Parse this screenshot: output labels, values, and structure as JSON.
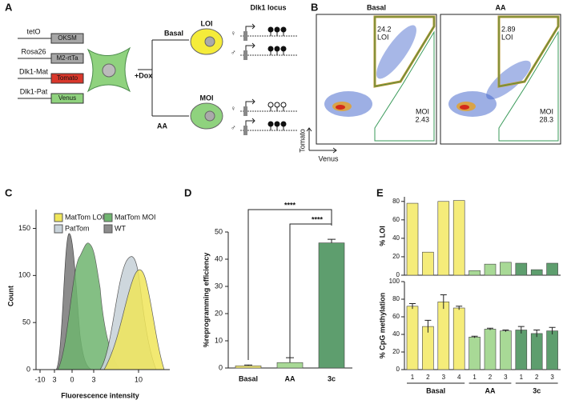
{
  "panel_a": {
    "label": "A",
    "constructs": [
      {
        "locus": "tetO",
        "cassette": "OKSM",
        "color": "#a6a6a6"
      },
      {
        "locus": "Rosa26",
        "cassette": "M2-rtTa",
        "color": "#a6a6a6"
      },
      {
        "locus": "Dlk1-Mat",
        "cassette": "Tomato",
        "color": "#d9372b"
      },
      {
        "locus": "Dlk1-Pat",
        "cassette": "Venus",
        "color": "#8fd27e"
      }
    ],
    "treatment": "+Dox",
    "conditions": [
      "Basal",
      "AA"
    ],
    "states": [
      "LOI",
      "MOI"
    ],
    "locus_title": "Dlk1 locus",
    "alleles": [
      "♀",
      "♂",
      "♀",
      "♂"
    ]
  },
  "panel_b": {
    "label": "B",
    "plots": [
      {
        "title": "Basal",
        "loi": 24.2,
        "moi": 2.43
      },
      {
        "title": "AA",
        "loi": 2.89,
        "moi": 28.3
      }
    ],
    "loi_label": "LOI",
    "moi_label": "MOI",
    "x_label": "Venus",
    "y_label": "Tomato"
  },
  "panel_c": {
    "label": "C",
    "legend": [
      {
        "name": "MatTom LOI",
        "color": "#f0e65a"
      },
      {
        "name": "MatTom MOI",
        "color": "#6fb56f"
      },
      {
        "name": "PatTom",
        "color": "#c9d3da"
      },
      {
        "name": "WT",
        "color": "#8c8c8c"
      }
    ],
    "x_label": "Fluorescence intensity",
    "y_label": "Count",
    "xticks": [
      "-10",
      "3",
      "0",
      "3",
      "10"
    ],
    "ylim": [
      0,
      170
    ],
    "yticks": [
      0,
      50,
      100,
      150
    ]
  },
  "chart_data": [
    {
      "type": "bar",
      "label": "D",
      "categories": [
        "Basal",
        "AA",
        "3c"
      ],
      "values": [
        0.8,
        2,
        46
      ],
      "errors": [
        0.3,
        1.8,
        1.3
      ],
      "colors": [
        "#f5ec7a",
        "#a8d996",
        "#5e9e6e"
      ],
      "ylim": [
        0,
        50
      ],
      "yticks": [
        0,
        10,
        20,
        30,
        40,
        50
      ],
      "ylabel": "%reprogramming efficiency",
      "annotations": [
        "****",
        "****"
      ]
    },
    {
      "type": "grouped-bar",
      "label": "E",
      "groups": [
        {
          "name": "Basal",
          "color": "#f5ec7a",
          "categories": [
            "1",
            "2",
            "3",
            "4"
          ],
          "loi": [
            78,
            25,
            80,
            81
          ],
          "cpg": [
            72,
            49,
            77,
            70
          ],
          "cpg_errors": [
            3,
            7,
            8,
            2
          ]
        },
        {
          "name": "AA",
          "color": "#a8d996",
          "categories": [
            "1",
            "2",
            "3"
          ],
          "loi": [
            5,
            12,
            14
          ],
          "cpg": [
            37,
            46,
            44
          ],
          "cpg_errors": [
            1,
            1,
            1
          ]
        },
        {
          "name": "3c",
          "color": "#5e9e6e",
          "categories": [
            "1",
            "2",
            "3"
          ],
          "loi": [
            13,
            6,
            13
          ],
          "cpg": [
            45,
            41,
            44
          ],
          "cpg_errors": [
            4,
            4,
            4
          ]
        }
      ],
      "loi_ylabel": "% LOI",
      "loi_ylim": [
        0,
        85
      ],
      "loi_yticks": [
        0,
        20,
        40,
        60,
        80
      ],
      "cpg_ylabel": "% CpG methylation",
      "cpg_ylim": [
        0,
        100
      ],
      "cpg_yticks": [
        0,
        20,
        40,
        60,
        80,
        100
      ]
    }
  ]
}
